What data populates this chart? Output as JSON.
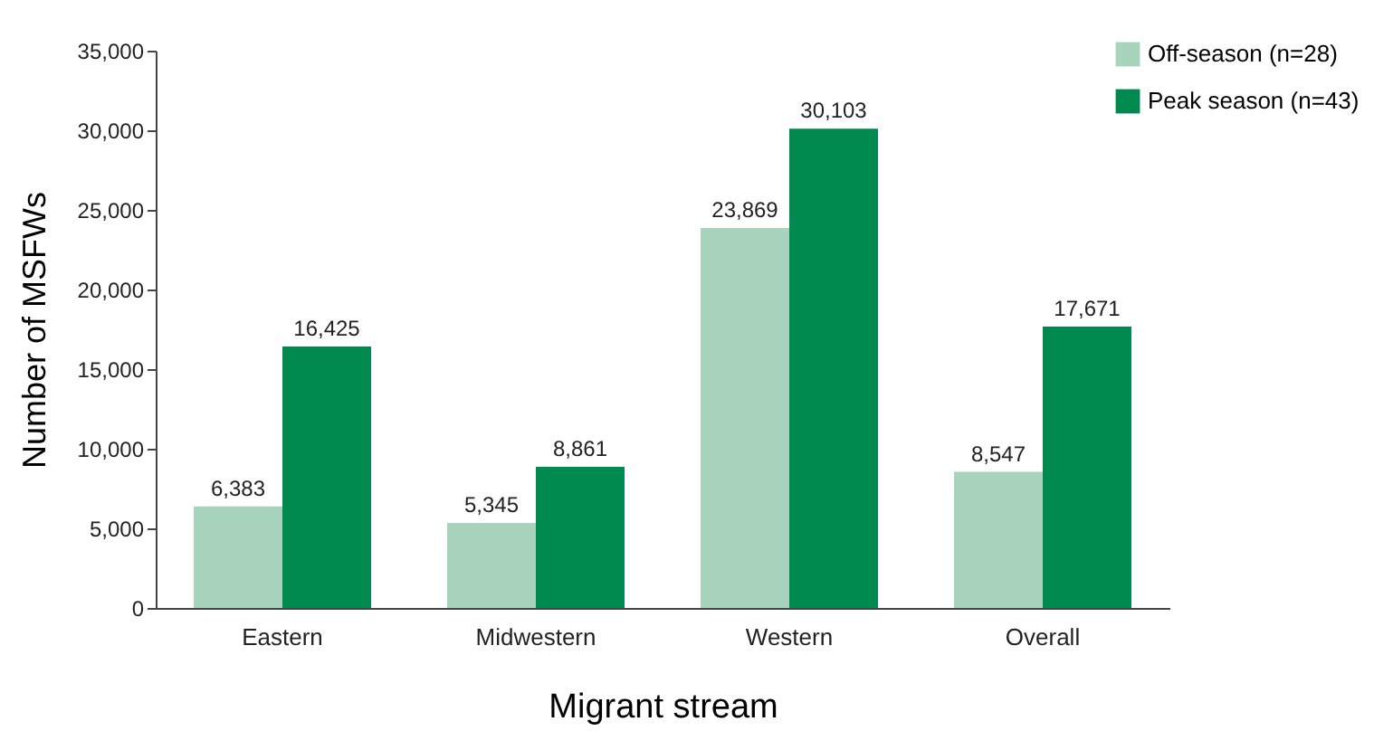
{
  "chart_data": {
    "type": "bar",
    "xlabel": "Migrant stream",
    "ylabel": "Number of MSFWs",
    "categories": [
      "Eastern",
      "Midwestern",
      "Western",
      "Overall"
    ],
    "series": [
      {
        "name": "Off-season (n=28)",
        "color": "#a8d3bd",
        "values": [
          6383,
          5345,
          23869,
          8547
        ],
        "value_labels": [
          "6,383",
          "5,345",
          "23,869",
          "8,547"
        ]
      },
      {
        "name": "Peak season (n=43)",
        "color": "#008a50",
        "values": [
          16425,
          8861,
          30103,
          17671
        ],
        "value_labels": [
          "16,425",
          "8,861",
          "30,103",
          "17,671"
        ]
      }
    ],
    "ylim": [
      0,
      35000
    ],
    "yticks": [
      0,
      {
        "value": 5000,
        "label": "5,000"
      },
      {
        "value": 10000,
        "label": "10,000"
      },
      {
        "value": 15000,
        "label": "15,000"
      },
      {
        "value": 20000,
        "label": "20,000"
      },
      {
        "value": 25000,
        "label": "25,000"
      },
      {
        "value": 30000,
        "label": "30,000"
      },
      {
        "value": 35000,
        "label": "35,000"
      }
    ],
    "grid": false,
    "legend": "top right"
  }
}
